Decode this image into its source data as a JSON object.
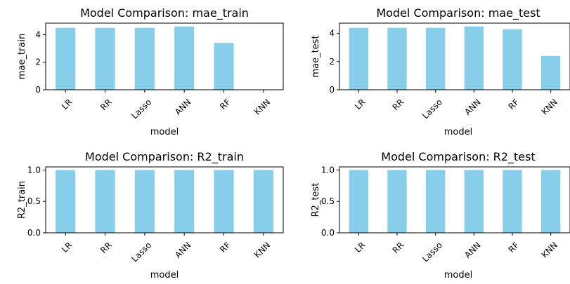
{
  "chart_data": [
    {
      "type": "bar",
      "title": "Model Comparison: mae_train",
      "xlabel": "model",
      "ylabel": "mae_train",
      "categories": [
        "LR",
        "RR",
        "Lasso",
        "ANN",
        "RF",
        "KNN"
      ],
      "values": [
        4.5,
        4.5,
        4.5,
        4.6,
        3.4,
        0
      ],
      "ylim": [
        0,
        4.84
      ],
      "yticks": [
        "0",
        "2",
        "4"
      ],
      "color": "#87ceeb",
      "grid": false
    },
    {
      "type": "bar",
      "title": "Model Comparison: mae_test",
      "xlabel": "model",
      "ylabel": "mae_test",
      "categories": [
        "LR",
        "RR",
        "Lasso",
        "ANN",
        "RF",
        "KNN"
      ],
      "values": [
        4.4,
        4.4,
        4.4,
        4.5,
        4.3,
        2.4
      ],
      "ylim": [
        0,
        4.73
      ],
      "yticks": [
        "0",
        "2",
        "4"
      ],
      "color": "#87ceeb",
      "grid": false
    },
    {
      "type": "bar",
      "title": "Model Comparison: R2_train",
      "xlabel": "model",
      "ylabel": "R2_train",
      "categories": [
        "LR",
        "RR",
        "Lasso",
        "ANN",
        "RF",
        "KNN"
      ],
      "values": [
        1.0,
        1.0,
        1.0,
        1.0,
        1.0,
        1.0
      ],
      "ylim": [
        0,
        1.05
      ],
      "yticks": [
        "0.0",
        "0.5",
        "1.0"
      ],
      "color": "#87ceeb",
      "grid": false
    },
    {
      "type": "bar",
      "title": "Model Comparison: R2_test",
      "xlabel": "model",
      "ylabel": "R2_test",
      "categories": [
        "LR",
        "RR",
        "Lasso",
        "ANN",
        "RF",
        "KNN"
      ],
      "values": [
        1.0,
        1.0,
        1.0,
        1.0,
        1.0,
        1.0
      ],
      "ylim": [
        0,
        1.05
      ],
      "yticks": [
        "0.0",
        "0.5",
        "1.0"
      ],
      "color": "#87ceeb",
      "grid": false
    }
  ]
}
